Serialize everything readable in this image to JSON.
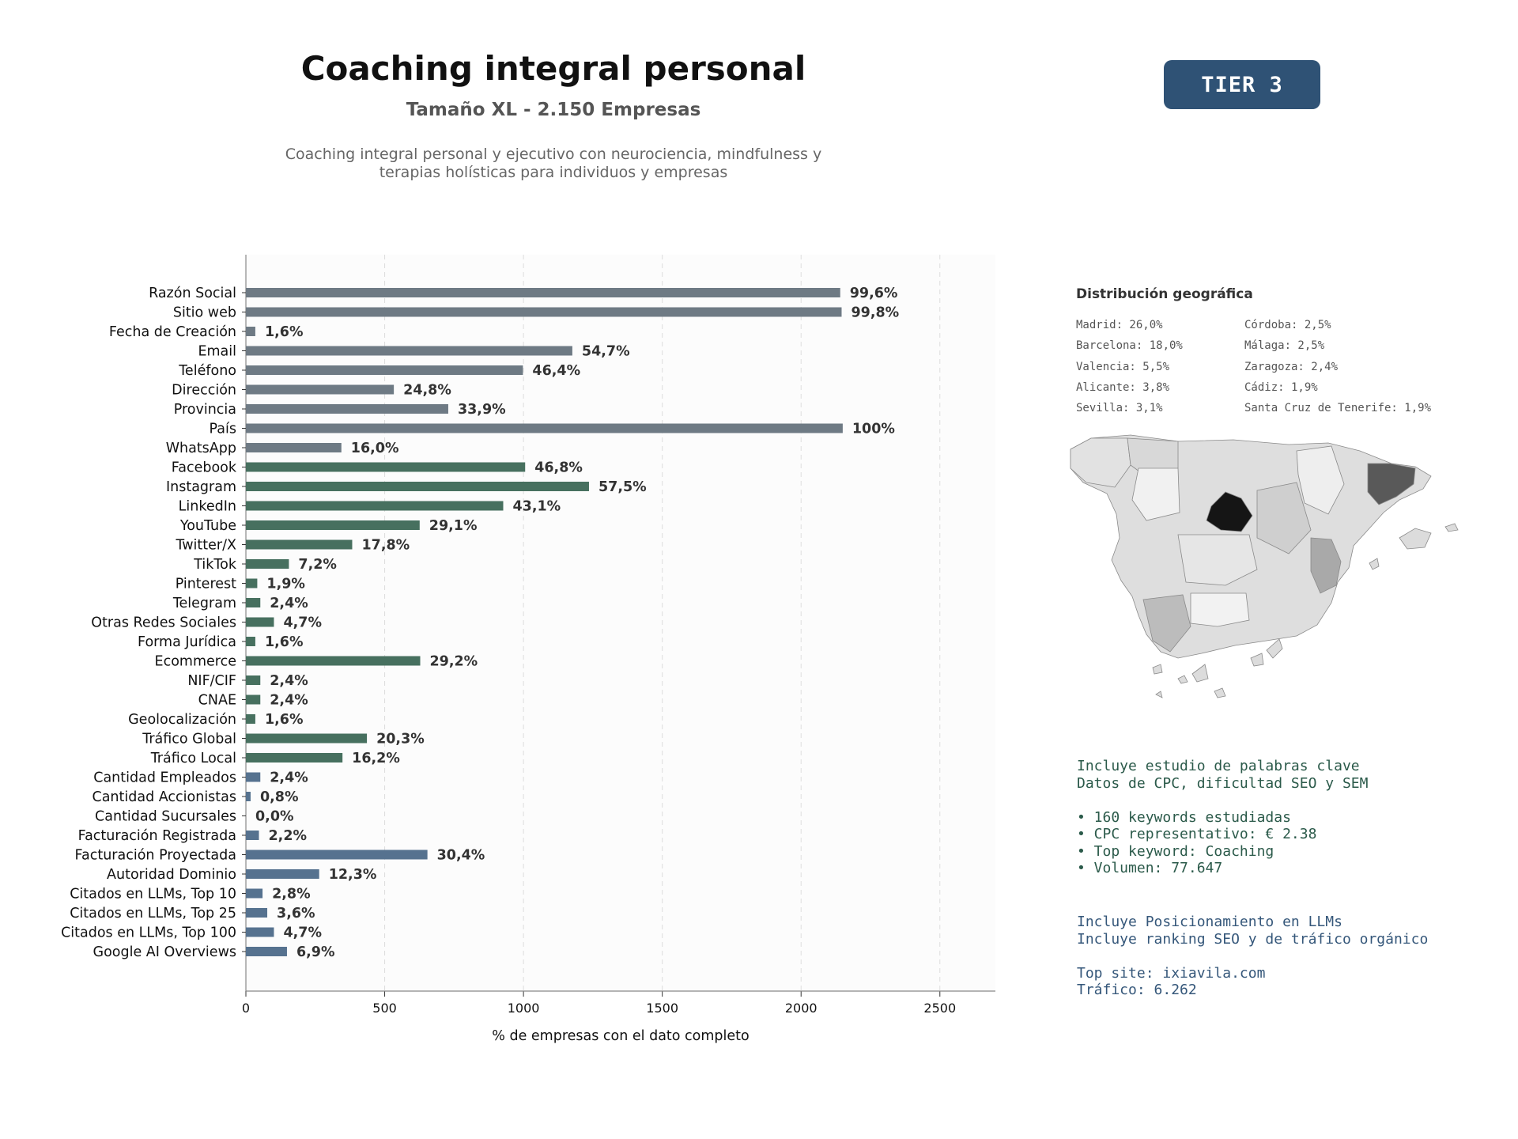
{
  "header": {
    "title": "Coaching integral personal",
    "subtitle": "Tamaño XL - 2.150 Empresas",
    "description_line1": "Coaching integral personal y ejecutivo con neurociencia, mindfulness y",
    "description_line2": "terapias holísticas para individuos y empresas",
    "tier_badge": "TIER 3"
  },
  "chart_data": {
    "type": "bar",
    "orientation": "horizontal",
    "xlabel": "% de empresas con el dato completo",
    "xlim": [
      0,
      2700
    ],
    "xticks": [
      0,
      500,
      1000,
      1500,
      2000,
      2500
    ],
    "grid": "vertical dashed",
    "total_companies": 2150,
    "categories": [
      "Razón Social",
      "Sitio web",
      "Fecha de Creación",
      "Email",
      "Teléfono",
      "Dirección",
      "Provincia",
      "País",
      "WhatsApp",
      "Facebook",
      "Instagram",
      "LinkedIn",
      "YouTube",
      "Twitter/X",
      "TikTok",
      "Pinterest",
      "Telegram",
      "Otras Redes Sociales",
      "Forma Jurídica",
      "Ecommerce",
      "NIF/CIF",
      "CNAE",
      "Geolocalización",
      "Tráfico Global",
      "Tráfico Local",
      "Cantidad Empleados",
      "Cantidad Accionistas",
      "Cantidad Sucursales",
      "Facturación Registrada",
      "Facturación Proyectada",
      "Autoridad Dominio",
      "Citados en LLMs, Top 10",
      "Citados en LLMs, Top 25",
      "Citados en LLMs, Top 100",
      "Google AI Overviews"
    ],
    "values": [
      2141,
      2146,
      34,
      1176,
      998,
      533,
      729,
      2150,
      344,
      1006,
      1236,
      927,
      626,
      383,
      155,
      41,
      52,
      101,
      34,
      628,
      52,
      52,
      34,
      436,
      348,
      52,
      17,
      0,
      47,
      654,
      264,
      60,
      77,
      101,
      148
    ],
    "labels": [
      "99,6%",
      "99,8%",
      "1,6%",
      "54,7%",
      "46,4%",
      "24,8%",
      "33,9%",
      "100%",
      "16,0%",
      "46,8%",
      "57,5%",
      "43,1%",
      "29,1%",
      "17,8%",
      "7,2%",
      "1,9%",
      "2,4%",
      "4,7%",
      "1,6%",
      "29,2%",
      "2,4%",
      "2,4%",
      "1,6%",
      "20,3%",
      "16,2%",
      "2,4%",
      "0,8%",
      "0,0%",
      "2,2%",
      "30,4%",
      "12,3%",
      "2,8%",
      "3,6%",
      "4,7%",
      "6,9%"
    ],
    "groups": [
      "gray",
      "gray",
      "gray",
      "gray",
      "gray",
      "gray",
      "gray",
      "gray",
      "gray",
      "green",
      "green",
      "green",
      "green",
      "green",
      "green",
      "green",
      "green",
      "green",
      "green",
      "green",
      "green",
      "green",
      "green",
      "green",
      "green",
      "blue",
      "blue",
      "blue",
      "blue",
      "blue",
      "blue",
      "blue",
      "blue",
      "blue",
      "blue"
    ],
    "colors": {
      "gray": "#6e7a84",
      "green": "#47705f",
      "blue": "#56728f"
    }
  },
  "geo": {
    "title": "Distribución geográfica",
    "col1": [
      "Madrid: 26,0%",
      "Barcelona: 18,0%",
      "Valencia: 5,5%",
      "Alicante: 3,8%",
      "Sevilla: 3,1%"
    ],
    "col2": [
      "Córdoba: 2,5%",
      "Málaga: 2,5%",
      "Zaragoza: 2,4%",
      "Cádiz: 1,9%",
      "Santa Cruz de Tenerife: 1,9%"
    ]
  },
  "keywords": {
    "line1": "Incluye estudio de palabras clave",
    "line2": "Datos de CPC, dificultad SEO y SEM",
    "bullets": [
      "• 160 keywords estudiadas",
      "• CPC representativo: € 2.38",
      "• Top keyword: Coaching",
      "• Volumen: 77.647"
    ]
  },
  "llm": {
    "line1": "Incluye Posicionamiento en LLMs",
    "line2": "Incluye ranking SEO y de tráfico orgánico",
    "top_site": "Top site: ixiavila.com",
    "traffic": "Tráfico: 6.262"
  }
}
